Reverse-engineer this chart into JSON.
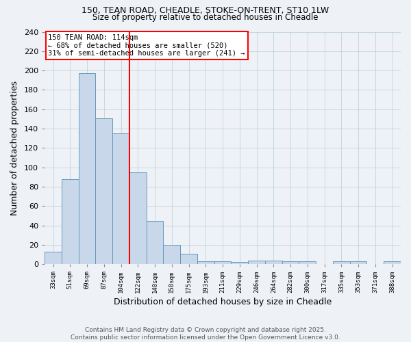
{
  "title1": "150, TEAN ROAD, CHEADLE, STOKE-ON-TRENT, ST10 1LW",
  "title2": "Size of property relative to detached houses in Cheadle",
  "xlabel": "Distribution of detached houses by size in Cheadle",
  "ylabel": "Number of detached properties",
  "categories": [
    "33sqm",
    "51sqm",
    "69sqm",
    "87sqm",
    "104sqm",
    "122sqm",
    "140sqm",
    "158sqm",
    "175sqm",
    "193sqm",
    "211sqm",
    "229sqm",
    "246sqm",
    "264sqm",
    "282sqm",
    "300sqm",
    "317sqm",
    "335sqm",
    "353sqm",
    "371sqm",
    "388sqm"
  ],
  "values": [
    13,
    88,
    197,
    151,
    135,
    95,
    45,
    20,
    11,
    3,
    3,
    2,
    4,
    4,
    3,
    3,
    0,
    3,
    3,
    0,
    3
  ],
  "bar_color": "#c8d8ea",
  "bar_edge_color": "#6699bb",
  "red_line_x": 4.5,
  "annotation_title": "150 TEAN ROAD: 114sqm",
  "annotation_line1": "← 68% of detached houses are smaller (520)",
  "annotation_line2": "31% of semi-detached houses are larger (241) →",
  "ylim": [
    0,
    240
  ],
  "yticks": [
    0,
    20,
    40,
    60,
    80,
    100,
    120,
    140,
    160,
    180,
    200,
    220,
    240
  ],
  "footer1": "Contains HM Land Registry data © Crown copyright and database right 2025.",
  "footer2": "Contains public sector information licensed under the Open Government Licence v3.0.",
  "bg_color": "#eef2f7",
  "grid_color": "#b8ccd8",
  "title1_fontsize": 9.0,
  "title2_fontsize": 8.5
}
